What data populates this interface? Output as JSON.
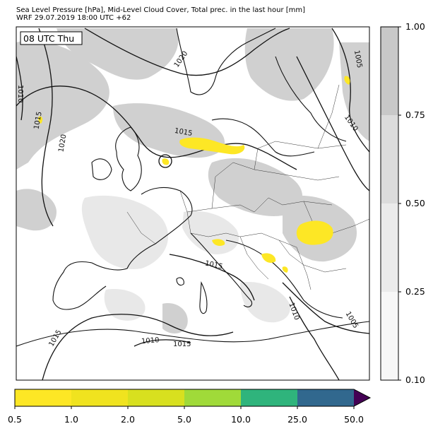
{
  "header": {
    "line1": "Sea Level Pressure [hPa], Mid-Level Cloud Cover, Total prec. in the last hour [mm]",
    "line2": "WRF 29.07.2019 18:00 UTC +62"
  },
  "map": {
    "time_label": "08 UTC Thu",
    "isobar_labels": [
      "1020",
      "1005",
      "1010",
      "1010",
      "1015",
      "1020",
      "1015",
      "1015",
      "1010",
      "1005",
      "1015",
      "1010",
      "1015"
    ]
  },
  "cloud_colorbar": {
    "ticks": [
      "1.00",
      "0.75",
      "0.50",
      "0.25",
      "0.10"
    ],
    "colors": [
      "#c8c8c8",
      "#dcdcdc",
      "#ebebeb",
      "#f7f7f7"
    ]
  },
  "precip_colorbar": {
    "ticks": [
      "0.5",
      "1.0",
      "2.0",
      "5.0",
      "10.0",
      "25.0",
      "50.0"
    ],
    "colors": [
      "#fde725",
      "#f0e31f",
      "#d8e01f",
      "#a0da39",
      "#2fb47c",
      "#31688e",
      "#3b4e8a",
      "#440154"
    ]
  },
  "colors": {
    "isobar": "#111111",
    "border": "#333333",
    "cloud": "#c8c8c8",
    "precip": "#fde725"
  }
}
